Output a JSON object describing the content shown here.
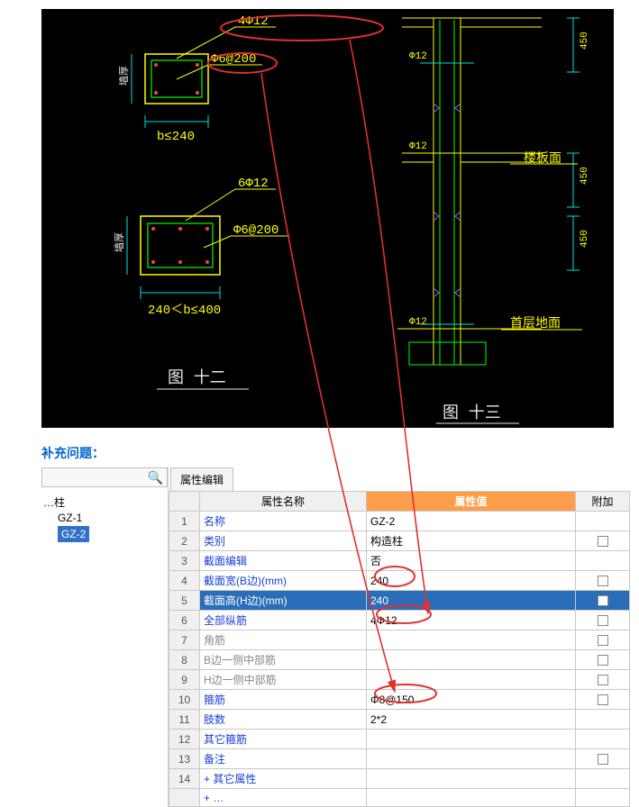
{
  "cad": {
    "bg": "#000000",
    "colors": {
      "yellow": "#ffff00",
      "green": "#00ff00",
      "red": "#ff4040",
      "cyan": "#00e0e0",
      "white": "#e8e8e8",
      "violet": "#a060ff"
    },
    "top_section": {
      "rebar_spec": "4Φ12",
      "stirrup_spec": "Φ6@200",
      "width_cond": "b≤240",
      "vlabel": "墙厚"
    },
    "bottom_section": {
      "rebar_spec": "6Φ12",
      "stirrup_spec": "Φ6@200",
      "width_cond": "240＜b≤400",
      "vlabel": "墙厚"
    },
    "fig_left": "图 十二",
    "fig_right": "图 十三",
    "elevation": {
      "dia_labels": [
        "Φ12",
        "Φ12",
        "Φ12"
      ],
      "dims": [
        "450",
        "450",
        "450"
      ],
      "floor_slab": "楼板面",
      "ground_floor": "首层地面"
    }
  },
  "supp_title": "补充问题：",
  "nav": {
    "root": "…柱",
    "items": [
      "GZ-1",
      "GZ-2"
    ],
    "selected_index": 1
  },
  "prop_tab": "属性编辑",
  "prop_headers": {
    "name": "属性名称",
    "value": "属性值",
    "extra": "附加"
  },
  "props": [
    {
      "n": 1,
      "name": "名称",
      "value": "GZ-2",
      "chk": null
    },
    {
      "n": 2,
      "name": "类别",
      "value": "构造柱",
      "chk": false
    },
    {
      "n": 3,
      "name": "截面编辑",
      "value": "否",
      "chk": null
    },
    {
      "n": 4,
      "name": "截面宽(B边)(mm)",
      "value": "240",
      "chk": false
    },
    {
      "n": 5,
      "name": "截面高(H边)(mm)",
      "value": "240",
      "chk": false,
      "selected": true
    },
    {
      "n": 6,
      "name": "全部纵筋",
      "value": "4Φ12",
      "chk": false
    },
    {
      "n": 7,
      "name": "角筋",
      "value": "",
      "chk": false,
      "disabled": true
    },
    {
      "n": 8,
      "name": "B边一侧中部筋",
      "value": "",
      "chk": false,
      "disabled": true
    },
    {
      "n": 9,
      "name": "H边一侧中部筋",
      "value": "",
      "chk": false,
      "disabled": true
    },
    {
      "n": 10,
      "name": "箍筋",
      "value": "Φ8@150",
      "chk": false
    },
    {
      "n": 11,
      "name": "肢数",
      "value": "2*2",
      "chk": null
    },
    {
      "n": 12,
      "name": "其它箍筋",
      "value": "",
      "chk": null
    },
    {
      "n": 13,
      "name": "备注",
      "value": "",
      "chk": false
    },
    {
      "n": 14,
      "name": "其它属性",
      "value": "",
      "chk": null,
      "expand": "+"
    },
    {
      "n": "",
      "name": "…",
      "value": "",
      "chk": null,
      "expand": "+"
    }
  ],
  "annot_color": "#e03030"
}
